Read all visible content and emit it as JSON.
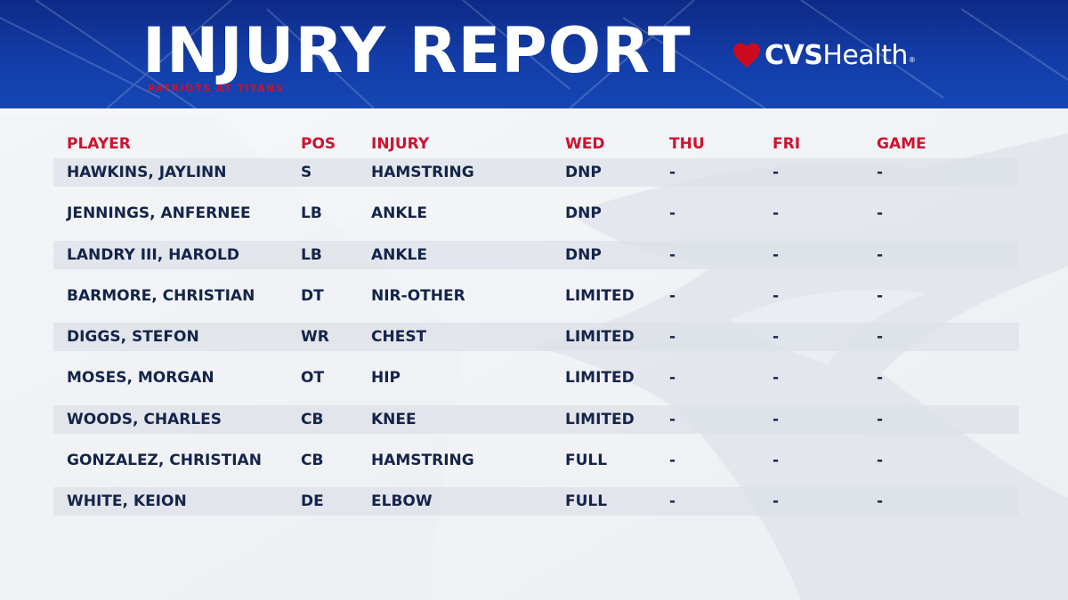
{
  "header": {
    "title": "INJURY REPORT",
    "subtitle": "PATRIOTS AT TITANS",
    "sponsor": {
      "bold": "CVS",
      "light": "Health",
      "mark": "®",
      "icon": "heart-icon"
    }
  },
  "colors": {
    "header_blue": "#133da8",
    "accent_red": "#cf1230",
    "text_navy": "#14244a"
  },
  "table": {
    "columns": [
      "PLAYER",
      "POS",
      "INJURY",
      "WED",
      "THU",
      "FRI",
      "GAME"
    ],
    "rows": [
      {
        "player": "HAWKINS, JAYLINN",
        "pos": "S",
        "injury": "HAMSTRING",
        "wed": "DNP",
        "thu": "-",
        "fri": "-",
        "game": "-"
      },
      {
        "player": "JENNINGS, ANFERNEE",
        "pos": "LB",
        "injury": "ANKLE",
        "wed": "DNP",
        "thu": "-",
        "fri": "-",
        "game": "-"
      },
      {
        "player": "LANDRY III, HAROLD",
        "pos": "LB",
        "injury": "ANKLE",
        "wed": "DNP",
        "thu": "-",
        "fri": "-",
        "game": "-"
      },
      {
        "player": "BARMORE, CHRISTIAN",
        "pos": "DT",
        "injury": "NIR-OTHER",
        "wed": "LIMITED",
        "thu": "-",
        "fri": "-",
        "game": "-"
      },
      {
        "player": "DIGGS, STEFON",
        "pos": "WR",
        "injury": "CHEST",
        "wed": "LIMITED",
        "thu": "-",
        "fri": "-",
        "game": "-"
      },
      {
        "player": "MOSES, MORGAN",
        "pos": "OT",
        "injury": "HIP",
        "wed": "LIMITED",
        "thu": "-",
        "fri": "-",
        "game": "-"
      },
      {
        "player": "WOODS, CHARLES",
        "pos": "CB",
        "injury": "KNEE",
        "wed": "LIMITED",
        "thu": "-",
        "fri": "-",
        "game": "-"
      },
      {
        "player": "GONZALEZ, CHRISTIAN",
        "pos": "CB",
        "injury": "HAMSTRING",
        "wed": "FULL",
        "thu": "-",
        "fri": "-",
        "game": "-"
      },
      {
        "player": "WHITE, KEION",
        "pos": "DE",
        "injury": "ELBOW",
        "wed": "FULL",
        "thu": "-",
        "fri": "-",
        "game": "-"
      }
    ]
  }
}
